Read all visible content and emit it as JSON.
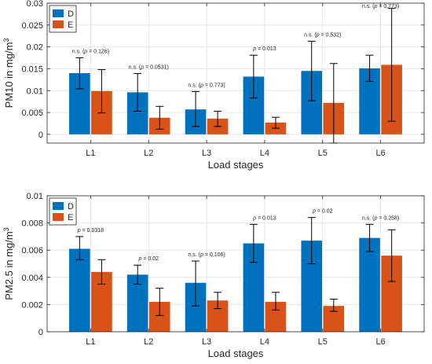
{
  "colors": {
    "D": "#0072BD",
    "E": "#D95319",
    "grid": "#e6e6e6",
    "axis": "#262626",
    "errorbar": "#000000"
  },
  "chart_data": [
    {
      "type": "bar",
      "categories": [
        "L1",
        "L2",
        "L3",
        "L4",
        "L5",
        "L6"
      ],
      "xlabel": "Load stages",
      "ylabel": "PM10 in mg/m",
      "ylabel_sup": "3",
      "ylim": [
        -0.002,
        0.03
      ],
      "yticks": [
        0,
        0.005,
        0.01,
        0.015,
        0.02,
        0.025,
        0.03
      ],
      "ytick_labels": [
        "0",
        "0.005",
        "0.01",
        "0.015",
        "0.02",
        "0.025",
        "0.03"
      ],
      "grid": true,
      "legend": "top-left",
      "series": [
        {
          "name": "D",
          "values": [
            0.014,
            0.0096,
            0.0057,
            0.0132,
            0.0145,
            0.0151
          ],
          "err_low": [
            0.0104,
            0.0053,
            0.0018,
            0.0083,
            0.0077,
            0.0121
          ],
          "err_high": [
            0.0175,
            0.0139,
            0.0098,
            0.0181,
            0.0213,
            0.0181
          ]
        },
        {
          "name": "E",
          "values": [
            0.0099,
            0.0038,
            0.0036,
            0.0027,
            0.0072,
            0.0159
          ],
          "err_low": [
            0.0049,
            0.0012,
            0.0018,
            0.0014,
            -0.002,
            0.003
          ],
          "err_high": [
            0.0148,
            0.0064,
            0.0053,
            0.0039,
            0.0162,
            0.0288
          ]
        }
      ],
      "annotations": [
        {
          "category": "L1",
          "text": "n.s. (",
          "p": "p",
          "rest": " = 0.126)"
        },
        {
          "category": "L2",
          "text": "n.s. (",
          "p": "p",
          "rest": " = 0.0531)"
        },
        {
          "category": "L3",
          "text": "n.s. (",
          "p": "p",
          "rest": " = 0.773)"
        },
        {
          "category": "L4",
          "text": "",
          "p": "p",
          "rest": " = 0.013"
        },
        {
          "category": "L5",
          "text": "n.s. (",
          "p": "p",
          "rest": " = 0.532)"
        },
        {
          "category": "L6",
          "text": "n.s. (",
          "p": "p",
          "rest": " = 0.773)"
        }
      ]
    },
    {
      "type": "bar",
      "categories": [
        "L1",
        "L2",
        "L3",
        "L4",
        "L5",
        "L6"
      ],
      "xlabel": "Load stages",
      "ylabel": "PM2.5 in mg/m",
      "ylabel_sup": "3",
      "ylim": [
        0,
        0.01
      ],
      "yticks": [
        0,
        0.002,
        0.004,
        0.006,
        0.008,
        0.01
      ],
      "ytick_labels": [
        "0",
        "0.002",
        "0.004",
        "0.006",
        "0.008",
        "0.01"
      ],
      "grid": true,
      "legend": "top-left",
      "series": [
        {
          "name": "D",
          "values": [
            0.0061,
            0.0042,
            0.0036,
            0.0065,
            0.0067,
            0.0069
          ],
          "err_low": [
            0.0053,
            0.0035,
            0.0019,
            0.0051,
            0.005,
            0.0059
          ],
          "err_high": [
            0.007,
            0.0049,
            0.0052,
            0.0079,
            0.0084,
            0.0079
          ]
        },
        {
          "name": "E",
          "values": [
            0.0044,
            0.0022,
            0.0023,
            0.0022,
            0.0019,
            0.0056
          ],
          "err_low": [
            0.0035,
            0.0012,
            0.0017,
            0.0016,
            0.0015,
            0.0037
          ],
          "err_high": [
            0.0053,
            0.0032,
            0.0029,
            0.0029,
            0.0024,
            0.0075
          ]
        }
      ],
      "annotations": [
        {
          "category": "L1",
          "text": "",
          "p": "p",
          "rest": " = 0.0318"
        },
        {
          "category": "L2",
          "text": "",
          "p": "p",
          "rest": " = 0.02"
        },
        {
          "category": "L3",
          "text": "n.s. (",
          "p": "p",
          "rest": " = 0.106)"
        },
        {
          "category": "L4",
          "text": "",
          "p": "p",
          "rest": " = 0.013"
        },
        {
          "category": "L5",
          "text": "",
          "p": "p",
          "rest": " = 0.02"
        },
        {
          "category": "L6",
          "text": "n.s. (",
          "p": "p",
          "rest": " = 0.258)"
        }
      ]
    }
  ]
}
